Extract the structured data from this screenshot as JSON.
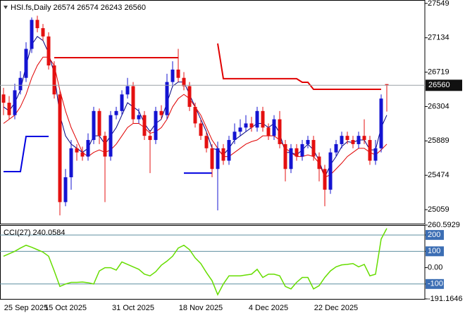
{
  "chart_data": [
    {
      "type": "candlestick",
      "title": "HSI.fs,Daily 26574 26574 26243 26560",
      "x": [
        null,
        null,
        null,
        null,
        "25 Sep 2025",
        null,
        null,
        null,
        null,
        null,
        null,
        "15 Oct 2025",
        null,
        null,
        null,
        null,
        null,
        null,
        null,
        null,
        null,
        null,
        null,
        "31 Oct 2025",
        null,
        null,
        null,
        null,
        null,
        null,
        null,
        null,
        null,
        null,
        null,
        "18 Nov 2025",
        null,
        null,
        null,
        null,
        null,
        null,
        null,
        null,
        null,
        null,
        null,
        "4 Dec 2025",
        null,
        null,
        null,
        null,
        null,
        null,
        null,
        null,
        null,
        null,
        null,
        "22 Dec 2025",
        null,
        null,
        null,
        null,
        null,
        null,
        null,
        null,
        null
      ],
      "open": [
        26450,
        26350,
        26200,
        26500,
        26650,
        27000,
        27350,
        27250,
        27150,
        26800,
        26450,
        25150,
        25450,
        25800,
        25750,
        25700,
        25900,
        26250,
        25950,
        25700,
        26200,
        26250,
        26450,
        26550,
        26150,
        26200,
        25950,
        25900,
        26250,
        26200,
        26600,
        26750,
        26650,
        26550,
        26300,
        26100,
        25950,
        25800,
        25550,
        25800,
        25650,
        25900,
        26000,
        26050,
        26100,
        26050,
        26250,
        26050,
        25950,
        26150,
        25850,
        25550,
        25800,
        25700,
        25850,
        25900,
        25700,
        25550,
        25300,
        25750,
        25850,
        25950,
        25900,
        25850,
        25950,
        25900,
        25650,
        25800,
        26574
      ],
      "high": [
        26530,
        26430,
        26580,
        26730,
        27080,
        27380,
        27400,
        27300,
        27200,
        26850,
        26500,
        25550,
        25900,
        25850,
        25820,
        25980,
        26300,
        26280,
        26000,
        26250,
        26300,
        26500,
        26650,
        26600,
        26280,
        26250,
        26020,
        26300,
        26320,
        26700,
        26850,
        27000,
        26720,
        26600,
        26350,
        26150,
        26000,
        25850,
        25880,
        25850,
        25950,
        26100,
        26150,
        26200,
        26180,
        26300,
        26300,
        26100,
        26200,
        26250,
        25900,
        25850,
        25850,
        25900,
        25950,
        25950,
        25750,
        25600,
        25800,
        25900,
        26000,
        26000,
        25950,
        26000,
        26150,
        25950,
        25900,
        26450,
        26574
      ],
      "low": [
        26200,
        26150,
        26150,
        26450,
        26600,
        26950,
        27200,
        27100,
        26750,
        26400,
        24990,
        25100,
        25300,
        25650,
        25650,
        25650,
        25850,
        25850,
        25150,
        25650,
        26150,
        26200,
        26400,
        26100,
        26100,
        25900,
        25500,
        25850,
        26150,
        26150,
        26550,
        26600,
        26500,
        26250,
        26050,
        25900,
        25750,
        25450,
        25050,
        25600,
        25600,
        25850,
        25950,
        26000,
        26000,
        26000,
        26000,
        25900,
        25900,
        25800,
        25400,
        25500,
        25650,
        25650,
        25800,
        25650,
        25400,
        25100,
        25250,
        25700,
        25800,
        25850,
        25800,
        25800,
        25850,
        25600,
        25600,
        25750,
        26243
      ],
      "close": [
        26350,
        26200,
        26500,
        26650,
        27000,
        27350,
        27250,
        27150,
        26800,
        26450,
        25150,
        25450,
        25800,
        25750,
        25700,
        25900,
        26250,
        25950,
        25700,
        26200,
        26250,
        26450,
        26550,
        26150,
        26200,
        25950,
        25900,
        26250,
        26200,
        26600,
        26750,
        26650,
        26550,
        26300,
        26100,
        25950,
        25800,
        25550,
        25800,
        25650,
        25900,
        26000,
        26050,
        26100,
        26050,
        26250,
        26050,
        25950,
        26150,
        25850,
        25550,
        25800,
        25700,
        25850,
        25900,
        25700,
        25550,
        25300,
        25750,
        25850,
        25950,
        25900,
        25850,
        25950,
        25900,
        25650,
        25800,
        26400,
        26560
      ],
      "up_color": "#1414d2",
      "down_color": "#e41010",
      "lines": [
        {
          "color": "#000080",
          "width": 1,
          "values": [
            26300,
            26250,
            26350,
            26500,
            26800,
            27050,
            27150,
            27100,
            26950,
            26700,
            26200,
            25950,
            25850,
            25800,
            25750,
            25800,
            25950,
            25950,
            25850,
            25950,
            26050,
            26200,
            26350,
            26300,
            26250,
            26100,
            26000,
            26100,
            26150,
            26350,
            26550,
            26600,
            26600,
            26450,
            26300,
            26150,
            26000,
            25800,
            25780,
            25720,
            25800,
            25900,
            25950,
            26000,
            26050,
            26100,
            26100,
            26050,
            26100,
            25980,
            25750,
            25750,
            25720,
            25780,
            25850,
            25780,
            25650,
            25450,
            25600,
            25700,
            25820,
            25880,
            25870,
            25900,
            25900,
            25780,
            25780,
            26050,
            26200
          ]
        },
        {
          "color": "#e00000",
          "width": 1,
          "values": [
            26100,
            26150,
            26200,
            26300,
            26450,
            26650,
            26800,
            26900,
            26900,
            26800,
            26500,
            26250,
            26050,
            25900,
            25750,
            25700,
            25750,
            25780,
            25750,
            25780,
            25850,
            25950,
            26050,
            26100,
            26100,
            26050,
            25980,
            26000,
            26050,
            26150,
            26300,
            26400,
            26450,
            26400,
            26300,
            26200,
            26050,
            25900,
            25800,
            25700,
            25700,
            25750,
            25800,
            25850,
            25880,
            25900,
            25950,
            25950,
            25950,
            25900,
            25800,
            25750,
            25700,
            25700,
            25720,
            25700,
            25620,
            25450,
            25480,
            25550,
            25620,
            25700,
            25750,
            25800,
            25800,
            25750,
            25720,
            25780,
            25850
          ]
        },
        {
          "color": "#e00000",
          "width": 2,
          "values": [
            null,
            null,
            null,
            null,
            null,
            null,
            null,
            null,
            null,
            26894,
            26894,
            26894,
            26894,
            26894,
            26894,
            26894,
            26894,
            26894,
            26894,
            26894,
            26894,
            26894,
            26894,
            26894,
            26894,
            26894,
            26894,
            26894,
            26894,
            26894,
            26894,
            26894,
            null,
            null,
            null,
            null,
            null,
            null,
            27065,
            26640,
            26640,
            26640,
            26640,
            26640,
            26640,
            26640,
            26640,
            26640,
            26640,
            26640,
            26640,
            26640,
            26640,
            26597,
            26597,
            26512,
            26512,
            26512,
            26512,
            26512,
            26512,
            26512,
            26512,
            26512,
            26512,
            26512,
            26512,
            26512,
            null
          ]
        },
        {
          "color": "#0000e0",
          "width": 2,
          "values": [
            25518,
            25518,
            25518,
            25518,
            25943,
            25943,
            25943,
            25943,
            25943,
            null,
            null,
            null,
            null,
            null,
            null,
            null,
            null,
            null,
            null,
            null,
            null,
            null,
            null,
            null,
            null,
            null,
            null,
            null,
            null,
            null,
            null,
            null,
            25500,
            25500,
            25500,
            25500,
            25500,
            25500,
            null,
            null,
            null,
            null,
            null,
            null,
            null,
            null,
            null,
            null,
            null,
            null,
            null,
            null,
            null,
            null,
            null,
            null,
            null,
            null,
            null,
            null,
            null,
            null,
            null,
            null,
            null,
            null,
            null,
            null,
            null
          ]
        }
      ],
      "last_price": 26560,
      "ylim": [
        24890,
        27590
      ],
      "yticks": [
        25059,
        25474,
        25889,
        26304,
        26719,
        27134,
        27549
      ],
      "grid": false
    },
    {
      "type": "line",
      "title": "CCI(27) 240.0584",
      "color": "#66dd00",
      "values": [
        70,
        85,
        100,
        120,
        137,
        125,
        110,
        95,
        70,
        -20,
        -115,
        -100,
        -90,
        -90,
        -88,
        -92,
        -100,
        -20,
        0,
        0,
        -15,
        35,
        20,
        5,
        -10,
        -40,
        -50,
        -25,
        15,
        40,
        70,
        120,
        137,
        110,
        60,
        25,
        -30,
        -80,
        -165,
        -100,
        -50,
        -50,
        -50,
        -45,
        -40,
        -10,
        -60,
        -40,
        -40,
        -50,
        -115,
        -130,
        -90,
        -60,
        -60,
        -130,
        -110,
        -60,
        -20,
        5,
        17,
        20,
        25,
        5,
        20,
        -50,
        -40,
        175,
        240.0584
      ],
      "levels": [
        200,
        100,
        -100
      ],
      "ylim": [
        -191.1646,
        260.5929
      ],
      "yticks": [
        -191.1646,
        -100,
        {
          "value": 0,
          "label": "0.00"
        },
        100,
        200,
        260.5929
      ],
      "grid": false
    }
  ]
}
